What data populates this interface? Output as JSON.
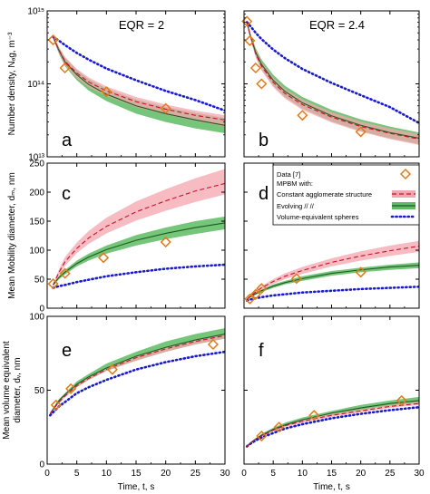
{
  "chart_data": {
    "type": "line",
    "layout": "3x2 panel grid",
    "colors": {
      "data_markers": "#E07B1A",
      "constant_line": "#C8102E",
      "constant_band": "#F4A6AE",
      "evolving_line": "#1E5A1E",
      "evolving_band": "#5DBB63",
      "volume_equivalent": "#1A1ACD"
    },
    "legend": {
      "placement": "panel-d-top-right",
      "entries": [
        {
          "key": "data",
          "text": "Data [7]"
        },
        {
          "key": "header",
          "text": "MPBM with:"
        },
        {
          "key": "constant",
          "text": "Constant agglomerate structure"
        },
        {
          "key": "evolving",
          "text": "Evolving          //          //"
        },
        {
          "key": "volume",
          "text": "Volume-equivalent  spheres"
        }
      ]
    },
    "columns": [
      {
        "title": "EQR = 2"
      },
      {
        "title": "EQR = 2.4"
      }
    ],
    "xlabel": "Time, t, s",
    "xticks": [
      "0",
      "5",
      "10",
      "15",
      "20",
      "25",
      "30"
    ],
    "xlim": [
      0,
      30
    ],
    "rows": [
      {
        "ylabel": "Number density, N_ag, m^-3",
        "ylabel_display": "Number density, Nₐg, m⁻³",
        "yscale": "log",
        "ylim": [
          10000000000000.0,
          1000000000000000.0
        ],
        "yticks": [
          "10¹³",
          "10¹⁴",
          "10¹⁵"
        ]
      },
      {
        "ylabel": "Mean Mobility diameter, d_m, nm",
        "ylabel_display": "Mean Mobility diameter, dₘ, nm",
        "yscale": "linear",
        "ylim": [
          0,
          250
        ],
        "yticks": [
          "0",
          "50",
          "100",
          "150",
          "200",
          "250"
        ]
      },
      {
        "ylabel": "Mean volume equivalent diameter, d_v, nm",
        "ylabel_display": [
          "Mean volume equivalent",
          "diameter, dᵥ, nm"
        ],
        "yscale": "linear",
        "ylim": [
          0,
          100
        ],
        "yticks": [
          "0",
          "50",
          "100"
        ]
      }
    ],
    "panels": [
      {
        "label": "a",
        "row": 0,
        "col": 0,
        "data_points": {
          "x": [
            1,
            3,
            10,
            20
          ],
          "y": [
            400000000000000.0,
            165000000000000.0,
            78000000000000.0,
            46000000000000.0
          ]
        },
        "constant": {
          "x": [
            1,
            2,
            3,
            5,
            7,
            10,
            15,
            20,
            25,
            30
          ],
          "y": [
            440000000000000.0,
            290000000000000.0,
            205000000000000.0,
            140000000000000.0,
            106000000000000.0,
            80000000000000.0,
            57000000000000.0,
            45000000000000.0,
            37000000000000.0,
            32000000000000.0
          ],
          "band_low": [
            420000000000000.0,
            260000000000000.0,
            180000000000000.0,
            120000000000000.0,
            90000000000000.0,
            68000000000000.0,
            48000000000000.0,
            38000000000000.0,
            31000000000000.0,
            26000000000000.0
          ],
          "band_high": [
            460000000000000.0,
            320000000000000.0,
            235000000000000.0,
            160000000000000.0,
            122000000000000.0,
            92000000000000.0,
            66000000000000.0,
            52000000000000.0,
            43000000000000.0,
            37000000000000.0
          ]
        },
        "evolving": {
          "x": [
            1,
            2,
            3,
            5,
            7,
            10,
            15,
            20,
            25,
            30
          ],
          "y": [
            440000000000000.0,
            285000000000000.0,
            200000000000000.0,
            133000000000000.0,
            98000000000000.0,
            72000000000000.0,
            50000000000000.0,
            39000000000000.0,
            32000000000000.0,
            27000000000000.0
          ],
          "band_low": [
            420000000000000.0,
            255000000000000.0,
            175000000000000.0,
            112000000000000.0,
            81000000000000.0,
            58000000000000.0,
            39000000000000.0,
            30000000000000.0,
            24500000000000.0,
            21000000000000.0
          ],
          "band_high": [
            460000000000000.0,
            315000000000000.0,
            228000000000000.0,
            155000000000000.0,
            116000000000000.0,
            86000000000000.0,
            61000000000000.0,
            48000000000000.0,
            40000000000000.0,
            34000000000000.0
          ]
        },
        "volume_equivalent": {
          "x": [
            1,
            2,
            3,
            5,
            7,
            10,
            15,
            20,
            25,
            30
          ],
          "y": [
            440000000000000.0,
            390000000000000.0,
            340000000000000.0,
            265000000000000.0,
            215000000000000.0,
            162000000000000.0,
            112000000000000.0,
            80000000000000.0,
            60000000000000.0,
            43000000000000.0
          ]
        }
      },
      {
        "label": "b",
        "row": 0,
        "col": 1,
        "data_points": {
          "x": [
            0.5,
            1,
            2,
            3,
            10,
            20
          ],
          "y": [
            720000000000000.0,
            390000000000000.0,
            165000000000000.0,
            100000000000000.0,
            37000000000000.0,
            22000000000000.0
          ]
        },
        "constant": {
          "x": [
            0.5,
            1,
            2,
            3,
            5,
            7,
            10,
            15,
            20,
            25,
            30
          ],
          "y": [
            700000000000000.0,
            480000000000000.0,
            260000000000000.0,
            175000000000000.0,
            105000000000000.0,
            74000000000000.0,
            52000000000000.0,
            35000000000000.0,
            26000000000000.0,
            21000000000000.0,
            17500000000000.0
          ],
          "band_low": [
            660000000000000.0,
            440000000000000.0,
            230000000000000.0,
            152000000000000.0,
            90000000000000.0,
            63000000000000.0,
            44000000000000.0,
            29500000000000.0,
            22000000000000.0,
            17500000000000.0,
            14500000000000.0
          ],
          "band_high": [
            740000000000000.0,
            520000000000000.0,
            295000000000000.0,
            200000000000000.0,
            122000000000000.0,
            86000000000000.0,
            61000000000000.0,
            41000000000000.0,
            30500000000000.0,
            24500000000000.0,
            20500000000000.0
          ]
        },
        "evolving": {
          "x": [
            0.5,
            1,
            2,
            3,
            5,
            7,
            10,
            15,
            20,
            25,
            30
          ],
          "y": [
            700000000000000.0,
            480000000000000.0,
            270000000000000.0,
            185000000000000.0,
            112000000000000.0,
            79000000000000.0,
            55000000000000.0,
            36500000000000.0,
            27000000000000.0,
            21500000000000.0,
            18000000000000.0
          ],
          "band_low": [
            660000000000000.0,
            440000000000000.0,
            235000000000000.0,
            158000000000000.0,
            94000000000000.0,
            66000000000000.0,
            46000000000000.0,
            30500000000000.0,
            22500000000000.0,
            18000000000000.0,
            15000000000000.0
          ],
          "band_high": [
            740000000000000.0,
            520000000000000.0,
            310000000000000.0,
            215000000000000.0,
            133000000000000.0,
            94000000000000.0,
            66000000000000.0,
            44000000000000.0,
            32500000000000.0,
            26000000000000.0,
            21500000000000.0
          ]
        },
        "volume_equivalent": {
          "x": [
            0.5,
            1,
            2,
            3,
            5,
            7,
            10,
            15,
            20,
            25,
            30
          ],
          "y": [
            700000000000000.0,
            630000000000000.0,
            500000000000000.0,
            410000000000000.0,
            295000000000000.0,
            225000000000000.0,
            160000000000000.0,
            103000000000000.0,
            70000000000000.0,
            48000000000000.0,
            29000000000000.0
          ]
        }
      },
      {
        "label": "c",
        "row": 1,
        "col": 0,
        "data_points": {
          "x": [
            1,
            3,
            9.5,
            20
          ],
          "y": [
            42,
            60,
            87,
            114
          ]
        },
        "constant": {
          "x": [
            1,
            2,
            3,
            5,
            7,
            10,
            15,
            20,
            25,
            30
          ],
          "y": [
            40,
            62,
            80,
            103,
            121,
            141,
            166,
            185,
            202,
            215
          ],
          "band_low": [
            38,
            57,
            73,
            95,
            111,
            129,
            151,
            168,
            183,
            196
          ],
          "band_high": [
            42,
            67,
            88,
            113,
            133,
            156,
            184,
            205,
            224,
            240
          ]
        },
        "evolving": {
          "x": [
            1,
            2,
            3,
            5,
            7,
            10,
            15,
            20,
            25,
            30
          ],
          "y": [
            40,
            53,
            62,
            77,
            88,
            101,
            117,
            129,
            139,
            147
          ],
          "band_low": [
            38,
            50,
            58,
            72,
            82,
            94,
            108,
            119,
            128,
            136
          ],
          "band_high": [
            42,
            56,
            66,
            82,
            94,
            108,
            126,
            139,
            150,
            158
          ]
        },
        "volume_equivalent": {
          "x": [
            1,
            2,
            3,
            5,
            7,
            10,
            15,
            20,
            25,
            30
          ],
          "y": [
            35,
            38,
            40,
            45,
            49,
            55,
            62,
            68,
            72,
            75
          ]
        }
      },
      {
        "label": "d",
        "row": 1,
        "col": 1,
        "data_points": {
          "x": [
            1,
            2,
            3,
            9,
            20
          ],
          "y": [
            16,
            24,
            34,
            51,
            62
          ]
        },
        "constant": {
          "x": [
            0.5,
            1,
            2,
            3,
            5,
            7,
            10,
            15,
            20,
            25,
            30
          ],
          "y": [
            15,
            20,
            28,
            35,
            46,
            55,
            65,
            79,
            90,
            99,
            107
          ],
          "band_low": [
            14,
            18,
            26,
            32,
            42,
            50,
            59,
            72,
            82,
            90,
            97
          ],
          "band_high": [
            16,
            22,
            30,
            38,
            50,
            60,
            71,
            86,
            98,
            108,
            116
          ]
        },
        "evolving": {
          "x": [
            0.5,
            1,
            2,
            3,
            5,
            7,
            10,
            15,
            20,
            25,
            30
          ],
          "y": [
            15,
            19,
            25,
            30,
            38,
            44,
            51,
            60,
            66,
            71,
            74
          ],
          "band_low": [
            14,
            18,
            23,
            28,
            35,
            41,
            47,
            56,
            62,
            66,
            69
          ],
          "band_high": [
            16,
            20,
            27,
            32,
            41,
            47,
            55,
            64,
            70,
            75,
            79
          ]
        },
        "volume_equivalent": {
          "x": [
            0.5,
            1,
            2,
            3,
            5,
            7,
            10,
            15,
            20,
            25,
            30
          ],
          "y": [
            13,
            15,
            17,
            19,
            22,
            24,
            27,
            30,
            33,
            35,
            37
          ]
        }
      },
      {
        "label": "e",
        "row": 2,
        "col": 0,
        "data_points": {
          "x": [
            1.5,
            4,
            11,
            28
          ],
          "y": [
            40,
            51,
            64,
            81
          ]
        },
        "constant": {
          "x": [
            0.5,
            1,
            2,
            3,
            5,
            7,
            10,
            15,
            20,
            25,
            30
          ],
          "y": [
            34,
            37,
            42,
            46,
            53,
            58,
            64,
            72,
            78,
            83,
            87
          ],
          "band_low": [
            33,
            36,
            41,
            45,
            52,
            57,
            63,
            70,
            76,
            81,
            85
          ],
          "band_high": [
            35,
            38,
            43,
            47,
            54,
            59,
            65,
            73,
            79,
            84,
            88
          ]
        },
        "evolving": {
          "x": [
            0.5,
            1,
            2,
            3,
            5,
            7,
            10,
            15,
            20,
            25,
            30
          ],
          "y": [
            34,
            37,
            43,
            47,
            54,
            59,
            65,
            73,
            79,
            84,
            88
          ],
          "band_low": [
            33,
            36,
            42,
            46,
            52,
            57,
            63,
            70,
            76,
            81,
            85
          ],
          "band_high": [
            35,
            38,
            44,
            48,
            56,
            61,
            68,
            76,
            83,
            88,
            92
          ]
        },
        "volume_equivalent": {
          "x": [
            0.5,
            1,
            2,
            3,
            5,
            7,
            10,
            15,
            20,
            25,
            30
          ],
          "y": [
            33,
            35,
            39,
            42,
            48,
            52,
            57,
            64,
            69,
            73,
            76
          ]
        }
      },
      {
        "label": "f",
        "row": 2,
        "col": 1,
        "data_points": {
          "x": [
            3,
            6,
            12,
            27
          ],
          "y": [
            19,
            25,
            33,
            43
          ]
        },
        "constant": {
          "x": [
            0.5,
            1,
            2,
            3,
            5,
            7,
            10,
            15,
            20,
            25,
            30
          ],
          "y": [
            12,
            14,
            17,
            19,
            23,
            26,
            29,
            33,
            36,
            39,
            41
          ],
          "band_low": [
            11.5,
            13.5,
            16.5,
            18.5,
            22,
            25,
            28,
            32,
            35,
            38,
            40
          ],
          "band_high": [
            12.5,
            14.5,
            17.5,
            19.5,
            24,
            27,
            30,
            34,
            37,
            40,
            42
          ]
        },
        "evolving": {
          "x": [
            0.5,
            1,
            2,
            3,
            5,
            7,
            10,
            15,
            20,
            25,
            30
          ],
          "y": [
            12,
            14,
            17,
            19.5,
            23.5,
            26.5,
            30,
            34.5,
            38,
            41,
            43
          ],
          "band_low": [
            11.5,
            13.5,
            16.5,
            18.5,
            22.5,
            25.5,
            29,
            33,
            36.5,
            39.5,
            41.5
          ],
          "band_high": [
            12.5,
            14.5,
            17.5,
            20.5,
            24.5,
            28,
            31.5,
            36,
            40,
            43,
            45.5
          ]
        },
        "volume_equivalent": {
          "x": [
            0.5,
            1,
            2,
            3,
            5,
            7,
            10,
            15,
            20,
            25,
            30
          ],
          "y": [
            12,
            13.5,
            16,
            18,
            21,
            24,
            27,
            31,
            34,
            36.5,
            38.5
          ]
        }
      }
    ]
  }
}
